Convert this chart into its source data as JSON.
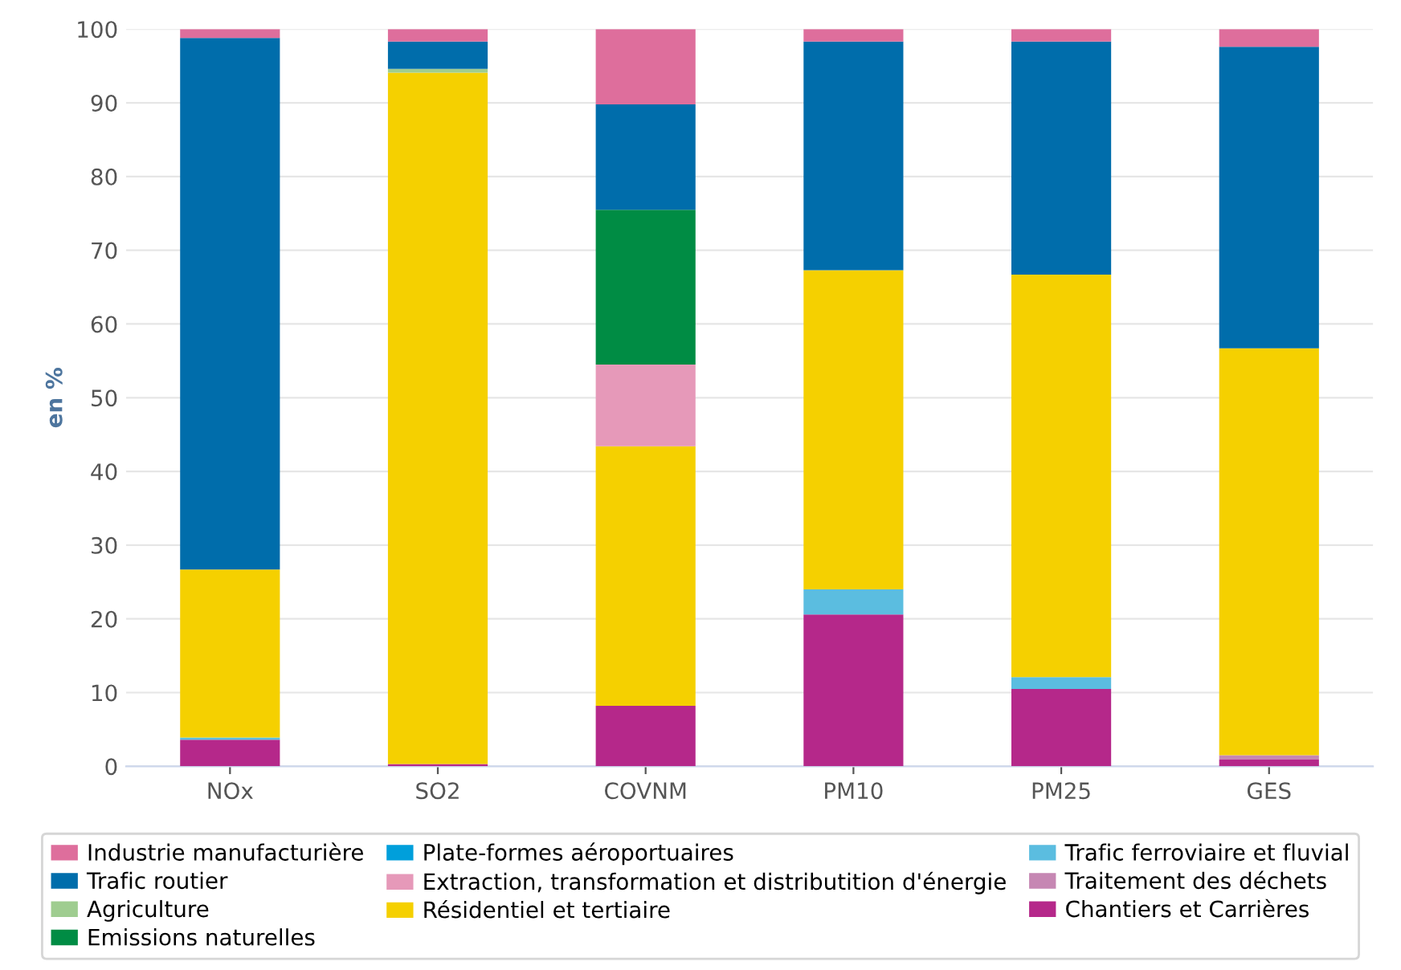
{
  "chart_data": {
    "type": "bar",
    "stacked": true,
    "ylabel": "en %",
    "categories": [
      "NOx",
      "SO2",
      "COVNM",
      "PM10",
      "PM25",
      "GES"
    ],
    "series": [
      {
        "name": "Chantiers et Carrières",
        "color": "#b5288a",
        "values": [
          3.6,
          0.3,
          8.2,
          20.6,
          10.5,
          0.9
        ]
      },
      {
        "name": "Traitement des déchets",
        "color": "#c687b3",
        "values": [
          0,
          0,
          0,
          0,
          0,
          0.6
        ]
      },
      {
        "name": "Trafic ferroviaire et fluvial",
        "color": "#5bbde0",
        "values": [
          0.3,
          0,
          0,
          3.4,
          1.6,
          0
        ]
      },
      {
        "name": "Résidentiel et tertiaire",
        "color": "#f5d000",
        "values": [
          22.8,
          93.8,
          35.2,
          43.3,
          54.6,
          55.2
        ]
      },
      {
        "name": "Extraction, transformation et distributition d'énergie",
        "color": "#e699b9",
        "values": [
          0,
          0,
          11.1,
          0,
          0,
          0
        ]
      },
      {
        "name": "Plate-formes aéroportuaires",
        "color": "#009fdb",
        "values": [
          0,
          0,
          0,
          0,
          0,
          0
        ]
      },
      {
        "name": "Emissions naturelles",
        "color": "#008c44",
        "values": [
          0,
          0,
          21.0,
          0,
          0,
          0
        ]
      },
      {
        "name": "Agriculture",
        "color": "#9fcd90",
        "values": [
          0,
          0.5,
          0,
          0,
          0,
          0
        ]
      },
      {
        "name": "Trafic routier",
        "color": "#006dab",
        "values": [
          72.1,
          3.7,
          14.3,
          31.0,
          31.6,
          40.9
        ]
      },
      {
        "name": "Industrie manufacturière",
        "color": "#de6e9c",
        "values": [
          1.2,
          1.7,
          10.2,
          1.7,
          1.7,
          2.4
        ]
      }
    ],
    "ylim": [
      0,
      100
    ],
    "yticks": [
      0,
      10,
      20,
      30,
      40,
      50,
      60,
      70,
      80,
      90,
      100
    ],
    "grid": "y",
    "legend": "bottom"
  }
}
